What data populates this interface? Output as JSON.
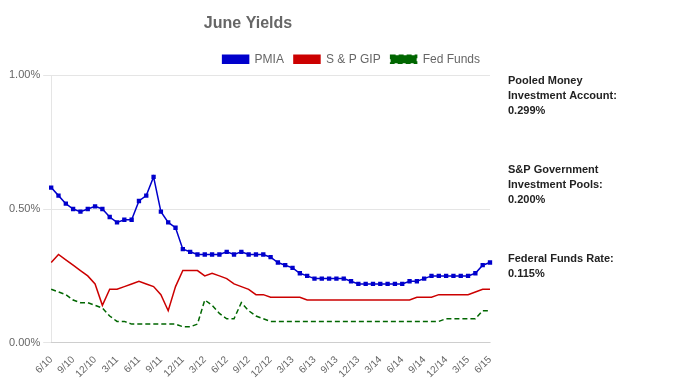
{
  "chart_data": {
    "type": "line",
    "title": "June Yields",
    "annotations": [
      "Pooled Money\nInvestment Account:\n0.299%",
      "S&P Government\nInvestment Pools:\n0.200%",
      "Federal Funds Rate:\n0.115%"
    ],
    "categories": [
      "6/10",
      null,
      null,
      "9/10",
      null,
      null,
      "12/10",
      null,
      null,
      "3/11",
      null,
      null,
      "6/11",
      null,
      null,
      "9/11",
      null,
      null,
      "12/11",
      null,
      null,
      "3/12",
      null,
      null,
      "6/12",
      null,
      null,
      "9/12",
      null,
      null,
      "12/12",
      null,
      null,
      "3/13",
      null,
      null,
      "6/13",
      null,
      null,
      "9/13",
      null,
      null,
      "12/13",
      null,
      null,
      "3/14",
      null,
      null,
      "6/14",
      null,
      null,
      "9/14",
      null,
      null,
      "12/14",
      null,
      null,
      "3/15",
      null,
      null,
      "6/15"
    ],
    "series": [
      {
        "name": "PMIA",
        "color": "#0000CC",
        "marker": "square",
        "line_style": "solid",
        "values": [
          0.0058,
          0.0055,
          0.0052,
          0.005,
          0.0049,
          0.005,
          0.0051,
          0.005,
          0.0047,
          0.0045,
          0.0046,
          0.0046,
          0.0053,
          0.0055,
          0.0062,
          0.0049,
          0.0045,
          0.0043,
          0.0035,
          0.0034,
          0.0033,
          0.0033,
          0.0033,
          0.0033,
          0.0034,
          0.0033,
          0.0034,
          0.0033,
          0.0033,
          0.0033,
          0.0032,
          0.003,
          0.0029,
          0.0028,
          0.0026,
          0.0025,
          0.0024,
          0.0024,
          0.0024,
          0.0024,
          0.0024,
          0.0023,
          0.0022,
          0.0022,
          0.0022,
          0.0022,
          0.0022,
          0.0022,
          0.0022,
          0.0023,
          0.0023,
          0.0024,
          0.0025,
          0.0025,
          0.0025,
          0.0025,
          0.0025,
          0.0025,
          0.0026,
          0.0029,
          0.003
        ]
      },
      {
        "name": "S & P GIP",
        "color": "#CC0000",
        "line_style": "solid",
        "values": [
          0.003,
          0.0033,
          0.0031,
          0.0029,
          0.0027,
          0.0025,
          0.0022,
          0.0014,
          0.002,
          0.002,
          0.0021,
          0.0022,
          0.0023,
          0.0022,
          0.0021,
          0.0018,
          0.0012,
          0.0021,
          0.0027,
          0.0027,
          0.0027,
          0.0025,
          0.0026,
          0.0025,
          0.0024,
          0.0022,
          0.0021,
          0.002,
          0.0018,
          0.0018,
          0.0017,
          0.0017,
          0.0017,
          0.0017,
          0.0017,
          0.0016,
          0.0016,
          0.0016,
          0.0016,
          0.0016,
          0.0016,
          0.0016,
          0.0016,
          0.0016,
          0.0016,
          0.0016,
          0.0016,
          0.0016,
          0.0016,
          0.0016,
          0.0017,
          0.0017,
          0.0017,
          0.0018,
          0.0018,
          0.0018,
          0.0018,
          0.0018,
          0.0019,
          0.002,
          0.002
        ]
      },
      {
        "name": "Fed Funds",
        "color": "#006600",
        "line_style": "dashed",
        "values": [
          0.002,
          0.0019,
          0.0018,
          0.0016,
          0.0015,
          0.0015,
          0.0014,
          0.0013,
          0.001,
          0.0008,
          0.0008,
          0.0007,
          0.0007,
          0.0007,
          0.0007,
          0.0007,
          0.0007,
          0.0007,
          0.0006,
          0.0006,
          0.0007,
          0.0016,
          0.0014,
          0.0011,
          0.0009,
          0.0009,
          0.0015,
          0.0012,
          0.001,
          0.0009,
          0.0008,
          0.0008,
          0.0008,
          0.0008,
          0.0008,
          0.0008,
          0.0008,
          0.0008,
          0.0008,
          0.0008,
          0.0008,
          0.0008,
          0.0008,
          0.0008,
          0.0008,
          0.0008,
          0.0008,
          0.0008,
          0.0008,
          0.0008,
          0.0008,
          0.0008,
          0.0008,
          0.0008,
          0.0009,
          0.0009,
          0.0009,
          0.0009,
          0.0009,
          0.0012,
          0.0012
        ]
      }
    ],
    "ylim": [
      0.0,
      0.01
    ],
    "yticks": [
      {
        "value": 0.0,
        "label": "0.00%"
      },
      {
        "value": 0.005,
        "label": "0.50%"
      },
      {
        "value": 0.01,
        "label": "1.00%"
      }
    ],
    "grid": true,
    "legend": "top"
  }
}
